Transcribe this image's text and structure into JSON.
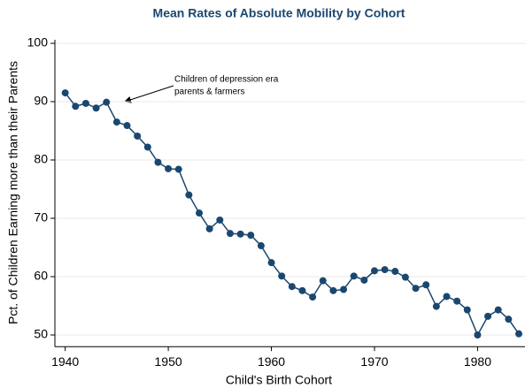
{
  "chart_data": {
    "type": "line",
    "title": "Mean Rates of Absolute Mobility by Cohort",
    "x_label": "Child's Birth Cohort",
    "y_label": "Pct. of Children Earning more than their Parents",
    "annotation": [
      "Children of depression era",
      "parents & farmers"
    ],
    "x": [
      1940,
      1941,
      1942,
      1943,
      1944,
      1945,
      1946,
      1947,
      1948,
      1949,
      1950,
      1951,
      1952,
      1953,
      1954,
      1955,
      1956,
      1957,
      1958,
      1959,
      1960,
      1961,
      1962,
      1963,
      1964,
      1965,
      1966,
      1967,
      1968,
      1969,
      1970,
      1971,
      1972,
      1973,
      1974,
      1975,
      1976,
      1977,
      1978,
      1979,
      1980,
      1981,
      1982,
      1983,
      1984
    ],
    "values": [
      91.5,
      89.2,
      89.7,
      88.9,
      89.9,
      86.5,
      85.9,
      84.1,
      82.2,
      79.6,
      78.5,
      78.4,
      74.0,
      70.9,
      68.2,
      69.7,
      67.4,
      67.3,
      67.1,
      65.3,
      62.4,
      60.1,
      58.3,
      57.6,
      56.5,
      59.3,
      57.6,
      57.8,
      60.1,
      59.4,
      61.0,
      61.2,
      60.9,
      59.9,
      58.0,
      58.6,
      54.9,
      56.6,
      55.8,
      54.3,
      50.0,
      53.2,
      54.3,
      52.7,
      50.2
    ],
    "color": "#1a476f",
    "xlim": [
      1939,
      1984.6
    ],
    "xticks": [
      1940,
      1950,
      1960,
      1970,
      1980
    ],
    "ylim": [
      48,
      100
    ],
    "yticks": [
      50,
      60,
      70,
      80,
      90,
      100
    ],
    "grid": true
  }
}
